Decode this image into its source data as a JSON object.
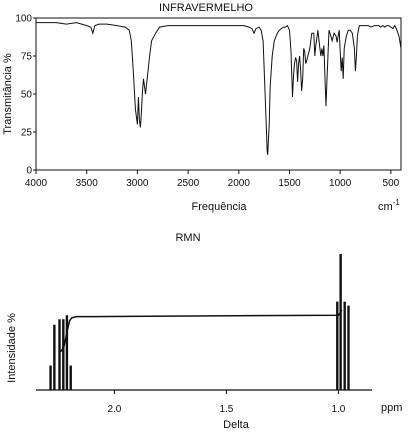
{
  "chart_data": [
    {
      "type": "line",
      "title": "INFRAVERMELHO",
      "xlabel": "Frequência",
      "xunit": "cm",
      "xunit_sup": "-1",
      "ylabel": "Transmitância %",
      "xlim": [
        4000,
        400
      ],
      "ylim": [
        0,
        100
      ],
      "x_ticks": [
        4000,
        3500,
        3000,
        2500,
        2000,
        1500,
        1000,
        500
      ],
      "y_ticks": [
        0,
        25,
        50,
        75,
        100
      ],
      "grid": false,
      "series": [
        {
          "x": [
            4000,
            3900,
            3800,
            3700,
            3600,
            3500,
            3460,
            3440,
            3420,
            3380,
            3300,
            3200,
            3120,
            3080,
            3060,
            3040,
            3020,
            3000,
            2990,
            2980,
            2970,
            2960,
            2950,
            2940,
            2920,
            2900,
            2880,
            2860,
            2820,
            2780,
            2700,
            2600,
            2500,
            2400,
            2300,
            2200,
            2100,
            2000,
            1950,
            1900,
            1870,
            1850,
            1830,
            1800,
            1780,
            1760,
            1740,
            1720,
            1715,
            1700,
            1690,
            1670,
            1650,
            1620,
            1600,
            1580,
            1560,
            1540,
            1520,
            1500,
            1485,
            1470,
            1460,
            1450,
            1440,
            1430,
            1420,
            1410,
            1400,
            1390,
            1380,
            1370,
            1360,
            1350,
            1340,
            1330,
            1300,
            1280,
            1260,
            1250,
            1240,
            1220,
            1200,
            1190,
            1180,
            1170,
            1160,
            1150,
            1140,
            1130,
            1110,
            1100,
            1080,
            1060,
            1040,
            1030,
            1020,
            1010,
            1000,
            990,
            980,
            970,
            960,
            940,
            920,
            900,
            880,
            860,
            850,
            840,
            830,
            820,
            810,
            800,
            780,
            760,
            740,
            720,
            700,
            660,
            620,
            600,
            580,
            560,
            540,
            520,
            500,
            480,
            460,
            440,
            420,
            400
          ],
          "values": [
            97,
            97,
            97,
            96,
            97,
            95,
            94,
            90,
            95,
            96,
            96,
            95,
            94,
            92,
            85,
            65,
            40,
            30,
            48,
            33,
            28,
            38,
            52,
            60,
            50,
            62,
            75,
            85,
            90,
            94,
            95,
            95,
            95,
            95,
            95,
            95,
            95,
            95,
            95,
            94,
            93,
            90,
            93,
            94,
            92,
            85,
            50,
            12,
            10,
            30,
            55,
            75,
            85,
            90,
            92,
            93,
            94,
            94,
            95,
            92,
            78,
            48,
            62,
            70,
            74,
            72,
            58,
            70,
            75,
            66,
            52,
            60,
            80,
            78,
            70,
            72,
            80,
            90,
            90,
            75,
            82,
            92,
            80,
            75,
            80,
            75,
            82,
            60,
            42,
            60,
            92,
            90,
            85,
            90,
            88,
            84,
            88,
            92,
            78,
            65,
            74,
            60,
            80,
            88,
            92,
            92,
            90,
            80,
            65,
            75,
            88,
            92,
            95,
            95,
            95,
            95,
            95,
            95,
            94,
            95,
            95,
            94,
            95,
            94,
            95,
            95,
            94,
            93,
            95,
            92,
            88,
            80
          ]
        }
      ]
    },
    {
      "type": "bar",
      "title": "RMN",
      "xlabel": "Delta",
      "xunit": "ppm",
      "ylabel": "Intensidade %",
      "xlim": [
        2.35,
        0.85
      ],
      "x_ticks": [
        2.0,
        1.5,
        1.0
      ],
      "x_tick_labels": [
        "2.0",
        "1.5",
        "1.0"
      ],
      "peaks_x": [
        2.285,
        2.268,
        2.245,
        2.228,
        2.212,
        2.195,
        1.005,
        0.99,
        0.972,
        0.955
      ],
      "peaks_height": [
        0.18,
        0.48,
        0.52,
        0.52,
        0.55,
        0.18,
        0.65,
        1.0,
        0.65,
        0.62
      ],
      "integral": {
        "x": [
          2.24,
          2.225,
          2.21,
          2.2,
          2.19,
          2.17,
          2.1,
          1.0,
          0.99,
          0.985
        ],
        "y": [
          0.28,
          0.32,
          0.44,
          0.51,
          0.53,
          0.54,
          0.54,
          0.55,
          0.57,
          0.59
        ]
      }
    }
  ]
}
